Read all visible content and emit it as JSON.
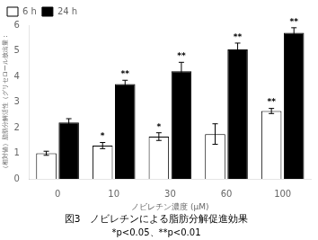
{
  "chart_data": {
    "type": "bar",
    "title": "図3　ノビレチンによる脂肪分解促進効果",
    "subtitle": "*p<0.05、**p<0.01",
    "xlabel": "ノビレチン濃度 (μM)",
    "ylabel": "（相対値）脂肪分解活性（グリセロール放出量：",
    "categories": [
      0,
      10,
      30,
      60,
      100
    ],
    "series": [
      {
        "name": "6 h",
        "color": "#ffffff",
        "values": [
          1.0,
          1.3,
          1.65,
          1.75,
          2.65
        ],
        "errors": [
          0.08,
          0.12,
          0.15,
          0.4,
          0.1
        ],
        "annotations": [
          null,
          "*",
          "*",
          null,
          "**"
        ]
      },
      {
        "name": "24 h",
        "color": "#000000",
        "values": [
          2.2,
          3.7,
          4.2,
          5.05,
          5.7
        ],
        "errors": [
          0.15,
          0.15,
          0.35,
          0.25,
          0.2
        ],
        "annotations": [
          null,
          "**",
          "**",
          "**",
          "**"
        ]
      }
    ],
    "ylim": [
      0,
      6
    ],
    "yticks": [
      0,
      1,
      2,
      3,
      4,
      5,
      6
    ],
    "grid": false,
    "legend": "upper left"
  }
}
